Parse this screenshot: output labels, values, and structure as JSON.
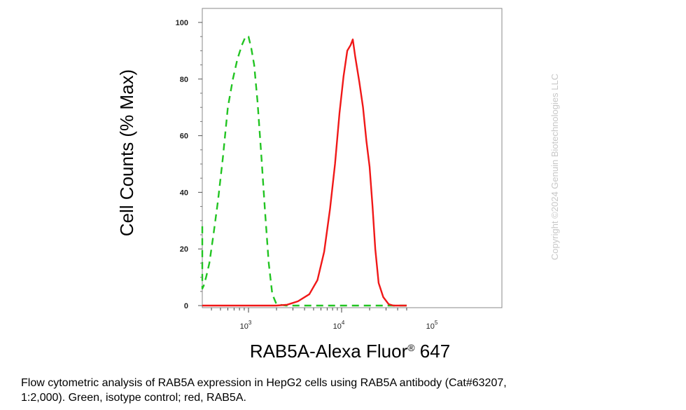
{
  "chart_data": {
    "type": "line",
    "title": "",
    "ylabel": "Cell Counts (% Max)",
    "xlabel": {
      "main": "RAB5A-Alexa Fluor",
      "registered": "®",
      "suffix": " 647"
    },
    "x_scale": "log",
    "xlim": [
      300,
      50000
    ],
    "ylim": [
      0,
      104
    ],
    "yticks": [
      0,
      20,
      40,
      60,
      80,
      100
    ],
    "ytick_labels": [
      "0",
      "20",
      "40",
      "60",
      "80",
      "100"
    ],
    "xticks": [
      {
        "value": 1000,
        "base": "10",
        "exp": "3"
      },
      {
        "value": 10000,
        "base": "10",
        "exp": "4"
      },
      {
        "value": 100000,
        "base": "10",
        "exp": "5"
      }
    ],
    "grid": false,
    "legend": "none",
    "series": [
      {
        "color": "#22c422",
        "dash": true,
        "points": [
          [
            300,
            28
          ],
          [
            305,
            12
          ],
          [
            315,
            6
          ],
          [
            330,
            7
          ],
          [
            350,
            10
          ],
          [
            380,
            15
          ],
          [
            420,
            25
          ],
          [
            470,
            37
          ],
          [
            530,
            52
          ],
          [
            600,
            70
          ],
          [
            680,
            80
          ],
          [
            760,
            87
          ],
          [
            850,
            92
          ],
          [
            930,
            95
          ],
          [
            1000,
            95
          ],
          [
            1070,
            91
          ],
          [
            1150,
            85
          ],
          [
            1250,
            72
          ],
          [
            1380,
            52
          ],
          [
            1500,
            34
          ],
          [
            1650,
            15
          ],
          [
            1800,
            4
          ],
          [
            2000,
            0.5
          ],
          [
            2500,
            0
          ],
          [
            5000,
            0
          ],
          [
            10000,
            0
          ],
          [
            20000,
            0
          ],
          [
            50000,
            0
          ]
        ]
      },
      {
        "color": "#f01818",
        "dash": false,
        "points": [
          [
            300,
            0
          ],
          [
            2000,
            0
          ],
          [
            2600,
            0.3
          ],
          [
            3400,
            1.5
          ],
          [
            4500,
            4
          ],
          [
            5500,
            9
          ],
          [
            6500,
            19
          ],
          [
            7500,
            34
          ],
          [
            8500,
            50
          ],
          [
            9500,
            68
          ],
          [
            10500,
            81
          ],
          [
            11500,
            90
          ],
          [
            12500,
            92
          ],
          [
            13200,
            94
          ],
          [
            14000,
            88
          ],
          [
            15500,
            79
          ],
          [
            17000,
            70
          ],
          [
            18500,
            58
          ],
          [
            20000,
            49
          ],
          [
            21500,
            35
          ],
          [
            23000,
            20
          ],
          [
            25000,
            8
          ],
          [
            28000,
            3
          ],
          [
            32000,
            0.5
          ],
          [
            36000,
            0
          ],
          [
            50000,
            0
          ]
        ]
      }
    ]
  },
  "watermark": "Copyright ©2024 Genuin Biotechnologies LLC",
  "caption": {
    "line1": "Flow cytometric analysis of RAB5A expression in HepG2 cells using RAB5A antibody (Cat#63207,",
    "line2": "1:2,000). Green, isotype control; red, RAB5A."
  }
}
